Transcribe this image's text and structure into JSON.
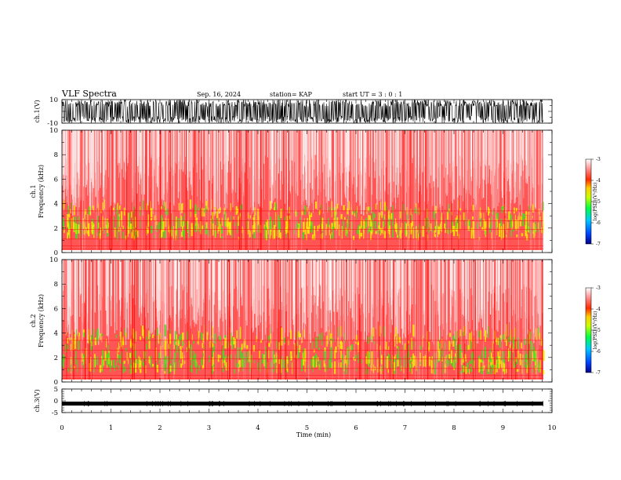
{
  "header": {
    "title": "VLF Spectra",
    "date": "Sep. 16, 2024",
    "station": "station= KAP",
    "start": "start  UT  =   3  : 0  : 1"
  },
  "chart_data": [
    {
      "type": "line",
      "name": "ch1-waveform",
      "ylabel": "ch.1(V)",
      "ylim": [
        -10,
        10
      ],
      "yticks": [
        "10",
        "-10"
      ],
      "xlim": [
        0,
        10
      ]
    },
    {
      "type": "heatmap",
      "name": "ch1-spectrogram",
      "ylabel_line1": "ch.1",
      "ylabel_line2": "Frequency  (kHz)",
      "ylim": [
        0,
        10
      ],
      "yticks": [
        "0",
        "2",
        "4",
        "6",
        "8",
        "10"
      ],
      "xlim": [
        0,
        10
      ],
      "data_end_min": 9.82,
      "colorbar": {
        "label": "log(PSD)(V²/Hz)",
        "ticks": [
          "-3",
          "-4",
          "-5",
          "-6",
          "-7"
        ],
        "range": [
          -7,
          -3
        ]
      }
    },
    {
      "type": "heatmap",
      "name": "ch2-spectrogram",
      "ylabel_line1": "ch.2",
      "ylabel_line2": "Frequency  (kHz)",
      "ylim": [
        0,
        10
      ],
      "yticks": [
        "0",
        "2",
        "4",
        "6",
        "8",
        "10"
      ],
      "xlim": [
        0,
        10
      ],
      "data_end_min": 9.82,
      "colorbar": {
        "label": "log(PSD)(V²/Hz)",
        "ticks": [
          "-3",
          "-4",
          "-5",
          "-6",
          "-7"
        ],
        "range": [
          -7,
          -3
        ]
      }
    },
    {
      "type": "line",
      "name": "ch3-waveform",
      "ylabel": "ch.3(V)",
      "ylim": [
        -5,
        5
      ],
      "yticks": [
        "5",
        "0",
        "-5"
      ],
      "level_V": -1.2,
      "xlim": [
        0,
        10
      ],
      "xlabel": "Time  (min)",
      "xticks": [
        "0",
        "1",
        "2",
        "3",
        "4",
        "5",
        "6",
        "7",
        "8",
        "9",
        "10"
      ]
    }
  ],
  "colors": {
    "spectrogram_base": "#ff2020",
    "spectrogram_high": "#ffff00",
    "waveform": "#000000"
  }
}
